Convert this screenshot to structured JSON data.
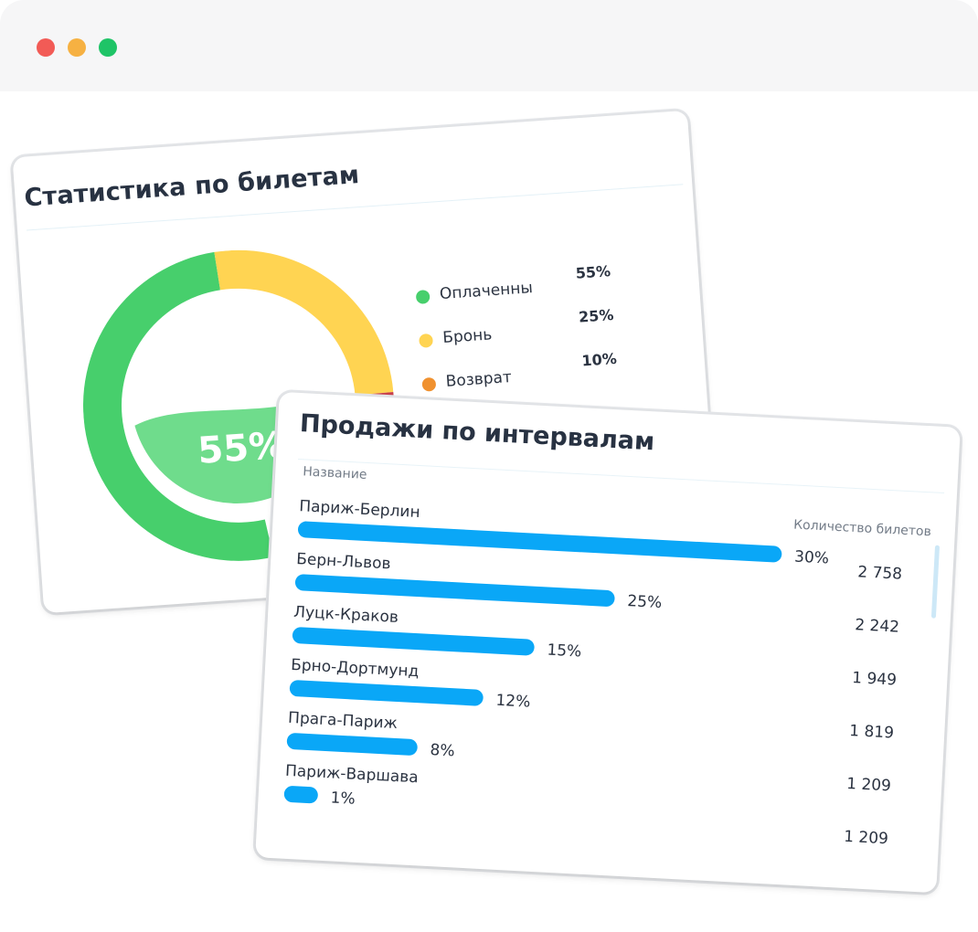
{
  "window": {
    "controls": [
      "close",
      "minimize",
      "maximize"
    ]
  },
  "stats": {
    "title": "Статистика по билетам",
    "center_value": "55%",
    "legend": [
      {
        "label": "Оплаченны",
        "value": "55%",
        "color": "#47cf6c"
      },
      {
        "label": "Бронь",
        "value": "25%",
        "color": "#ffd452"
      },
      {
        "label": "Возврат",
        "value": "10%",
        "color": "#f0912f"
      }
    ]
  },
  "sales": {
    "title": "Продажи по интервалам",
    "col_name": "Название",
    "col_count": "Количество билетов",
    "rows": [
      {
        "label": "Париж-Берлин",
        "percent": "30%",
        "count": "2 758",
        "fill": 1.0
      },
      {
        "label": "Берн-Львов",
        "percent": "25%",
        "count": "2 242",
        "fill": 0.66
      },
      {
        "label": "Луцк-Краков",
        "percent": "15%",
        "count": "1 949",
        "fill": 0.5
      },
      {
        "label": "Брно-Дортмунд",
        "percent": "12%",
        "count": "1 819",
        "fill": 0.4
      },
      {
        "label": "Прага-Париж",
        "percent": "8%",
        "count": "1 209",
        "fill": 0.27
      },
      {
        "label": "Париж-Варшава",
        "percent": "1%",
        "count": "1 209",
        "fill": 0.07
      }
    ]
  },
  "chart_data": [
    {
      "type": "pie",
      "title": "Статистика по билетам",
      "categories": [
        "Оплаченны",
        "Бронь",
        "Возврат"
      ],
      "values": [
        55,
        25,
        10
      ],
      "colors": [
        "#47cf6c",
        "#ffd452",
        "#f0912f"
      ]
    },
    {
      "type": "bar",
      "title": "Продажи по интервалам",
      "categories": [
        "Париж-Берлин",
        "Берн-Львов",
        "Луцк-Краков",
        "Брно-Дортмунд",
        "Прага-Париж",
        "Париж-Варшава"
      ],
      "values": [
        30,
        25,
        15,
        12,
        8,
        1
      ],
      "counts": [
        "2 758",
        "2 242",
        "1 949",
        "1 819",
        "1 209",
        "1 209"
      ]
    }
  ]
}
